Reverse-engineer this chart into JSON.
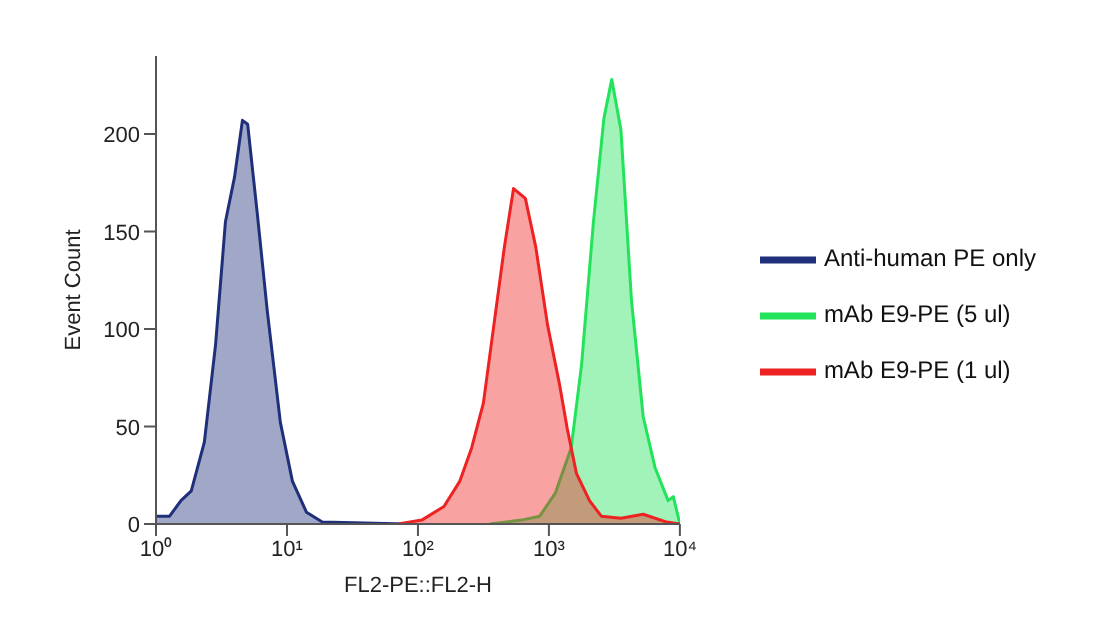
{
  "chart_data": {
    "type": "area",
    "xlabel": "FL2-PE::FL2-H",
    "ylabel": "Event Count",
    "log": "x",
    "xlim": [
      1,
      10000
    ],
    "xticks": [
      {
        "value": 1,
        "label": "10⁰"
      },
      {
        "value": 10,
        "label": "10¹"
      },
      {
        "value": 100,
        "label": "10²"
      },
      {
        "value": 1000,
        "label": "10³"
      },
      {
        "value": 10000,
        "label": "10⁴"
      }
    ],
    "ylim": [
      0,
      240
    ],
    "yticks": [
      0,
      50,
      100,
      150,
      200
    ],
    "legend": "right",
    "series": [
      {
        "name": "Anti-human PE only",
        "color": "#1f2f7a",
        "x": [
          1,
          1.27,
          1.55,
          1.86,
          2.34,
          2.85,
          3.39,
          3.98,
          4.57,
          5.01,
          5.96,
          7.08,
          8.91,
          11,
          14.1,
          18.6,
          81
        ],
        "values": [
          4,
          4,
          12,
          17,
          42,
          92,
          155,
          178,
          207,
          205,
          158,
          109,
          52,
          22,
          6,
          1,
          0
        ]
      },
      {
        "name": "mAb E9-PE (5 ul)",
        "color": "#22e35a",
        "x": [
          355,
          617,
          851,
          1122,
          1479,
          1778,
          2188,
          2630,
          3020,
          3548,
          4266,
          5248,
          6457,
          8128,
          8913,
          10000
        ],
        "values": [
          0,
          2,
          4,
          16,
          39,
          82,
          155,
          208,
          228,
          202,
          115,
          55,
          29,
          12,
          14,
          0
        ]
      },
      {
        "name": "mAb E9-PE (1 ul)",
        "color": "#ee2222",
        "x": [
          70.8,
          107,
          158,
          209,
          257,
          316,
          380,
          457,
          537,
          661,
          794,
          977,
          1202,
          1380,
          1622,
          2042,
          2512,
          3548,
          5248,
          7943,
          10000
        ],
        "values": [
          0,
          2,
          9,
          22,
          39,
          62,
          102,
          142,
          172,
          167,
          142,
          102,
          72,
          49,
          26,
          12,
          4,
          3,
          5,
          1,
          0
        ]
      }
    ]
  }
}
